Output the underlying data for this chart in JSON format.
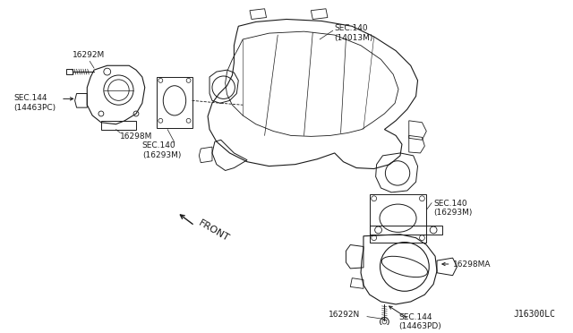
{
  "background_color": "#ffffff",
  "line_color": "#1a1a1a",
  "text_color": "#1a1a1a",
  "diagram_code": "J16300LC",
  "labels": {
    "top_left_part": "16292M",
    "sec144_left": "SEC.144\n(14463PC)",
    "part_left_body": "16298M",
    "sec140_left": "SEC.140\n(16293M)",
    "sec140_top": "SEC.140\n(14013M)",
    "sec140_right": "SEC.140\n(16293M)",
    "part_right_body": "16298MA",
    "bottom_part": "16292N",
    "sec144_right": "SEC.144\n(14463PD)",
    "front_label": "FRONT"
  },
  "font_sizes": {
    "label": 6.5,
    "code": 7.0
  }
}
